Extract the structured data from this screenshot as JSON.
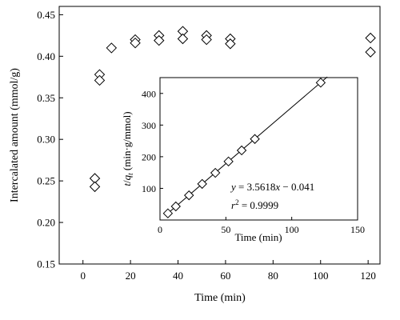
{
  "chart_data": [
    {
      "id": "main",
      "type": "scatter",
      "title": "",
      "xlabel": "Time (min)",
      "ylabel": "Intercalated amount (mmol/g)",
      "xlim": [
        -10,
        125
      ],
      "ylim": [
        0.15,
        0.46
      ],
      "xticks": [
        0,
        20,
        40,
        60,
        80,
        100,
        120
      ],
      "xtick_labels": [
        "0",
        "20",
        "40",
        "60",
        "80",
        "100",
        "120"
      ],
      "yticks": [
        0.15,
        0.2,
        0.25,
        0.3,
        0.35,
        0.4,
        0.45
      ],
      "ytick_labels": [
        "0.15",
        "0.20",
        "0.25",
        "0.30",
        "0.35",
        "0.40",
        "0.45"
      ],
      "grid": false,
      "marker": "diamond-open",
      "series": [
        {
          "points": [
            {
              "x": 5,
              "y": 0.253
            },
            {
              "x": 5,
              "y": 0.243
            },
            {
              "x": 7,
              "y": 0.378
            },
            {
              "x": 7,
              "y": 0.371
            },
            {
              "x": 12,
              "y": 0.41
            },
            {
              "x": 22,
              "y": 0.42
            },
            {
              "x": 22,
              "y": 0.416
            },
            {
              "x": 32,
              "y": 0.425
            },
            {
              "x": 32,
              "y": 0.419
            },
            {
              "x": 42,
              "y": 0.43
            },
            {
              "x": 42,
              "y": 0.421
            },
            {
              "x": 52,
              "y": 0.425
            },
            {
              "x": 52,
              "y": 0.42
            },
            {
              "x": 62,
              "y": 0.421
            },
            {
              "x": 62,
              "y": 0.415
            },
            {
              "x": 121,
              "y": 0.422
            },
            {
              "x": 121,
              "y": 0.405
            }
          ]
        }
      ]
    },
    {
      "id": "inset",
      "type": "scatter",
      "title": "",
      "xlabel": "Time (min)",
      "ylabel_parts": [
        "t",
        "/",
        "q",
        "t",
        " (min·g/mmol)"
      ],
      "xlim": [
        0,
        150
      ],
      "ylim": [
        0,
        450
      ],
      "xticks": [
        0,
        50,
        100,
        150
      ],
      "xtick_labels": [
        "0",
        "50",
        "100",
        "150"
      ],
      "yticks": [
        100,
        200,
        300,
        400
      ],
      "ytick_labels": [
        "100",
        "200",
        "300",
        "400"
      ],
      "grid": false,
      "marker": "diamond-open",
      "series": [
        {
          "points": [
            {
              "x": 6,
              "y": 21
            },
            {
              "x": 12,
              "y": 43
            },
            {
              "x": 22,
              "y": 78
            },
            {
              "x": 32,
              "y": 114
            },
            {
              "x": 42,
              "y": 149
            },
            {
              "x": 52,
              "y": 185
            },
            {
              "x": 62,
              "y": 220
            },
            {
              "x": 72,
              "y": 256
            },
            {
              "x": 122,
              "y": 434
            }
          ]
        }
      ],
      "fit_line": {
        "slope": 3.5618,
        "intercept": -0.041,
        "x_range": [
          5,
          127
        ]
      },
      "annotations": {
        "equation": [
          "y",
          " = 3.5618",
          "x",
          " − 0.041"
        ],
        "r2": [
          "r",
          "2",
          " = 0.9999"
        ]
      }
    }
  ]
}
